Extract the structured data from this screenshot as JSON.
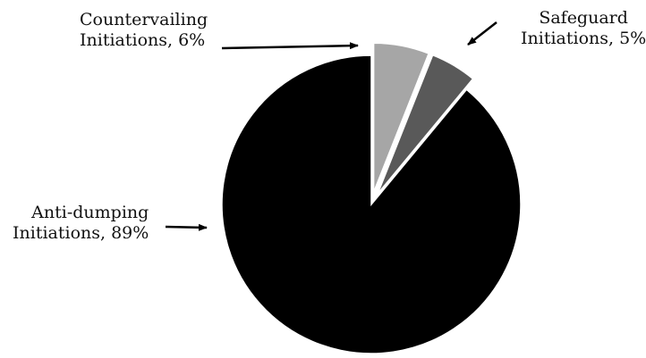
{
  "chart_data": {
    "type": "pie",
    "title": "",
    "slices": [
      {
        "name": "Countervailing Initiations",
        "value": 6,
        "label_line1": "Countervailing",
        "label_line2": "Initiations, 6%",
        "color": "#a6a6a6",
        "exploded": true
      },
      {
        "name": "Safeguard Initiations",
        "value": 5,
        "label_line1": "Safeguard",
        "label_line2": "Initiations, 5%",
        "color": "#595959",
        "exploded": true
      },
      {
        "name": "Anti-dumping Initiations",
        "value": 89,
        "label_line1": "Anti-dumping",
        "label_line2": "Initiations, 89%",
        "color": "#000000",
        "exploded": false
      }
    ],
    "start_angle": "12 o'clock, clockwise",
    "legend": "none"
  }
}
